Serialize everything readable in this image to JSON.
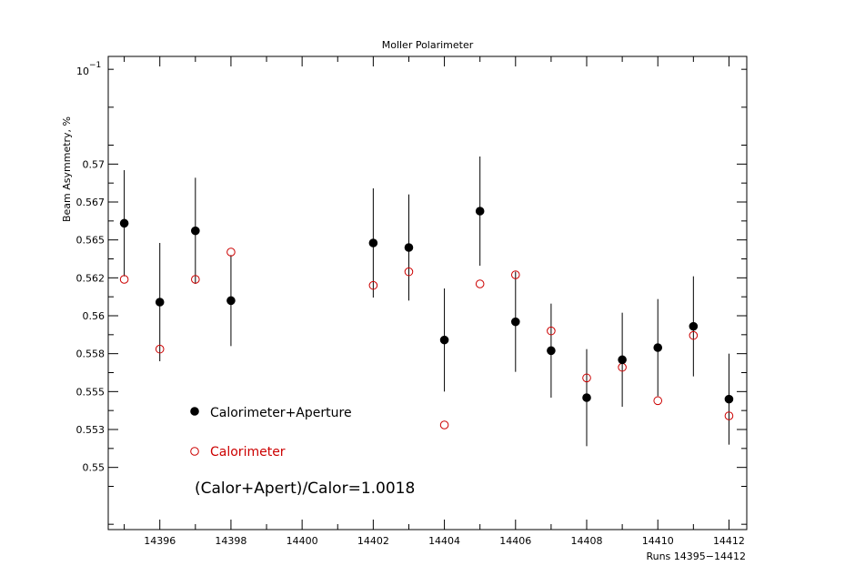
{
  "chart_data": {
    "type": "scatter",
    "title": "Moller Polarimeter",
    "xlabel": "Runs 14395−14412",
    "ylabel": "Beam Asymmetry, %",
    "y_exponent_label": "10",
    "y_exponent_power": "−1",
    "xlim": [
      14394.55,
      14412.5
    ],
    "ylim": [
      0.5459,
      0.5771
    ],
    "x_ticks": [
      14396,
      14398,
      14400,
      14402,
      14404,
      14406,
      14408,
      14410,
      14412
    ],
    "x_tick_labels": [
      "14396",
      "14398",
      "14400",
      "14402",
      "14404",
      "14406",
      "14408",
      "14410",
      "14412"
    ],
    "y_ticks": [
      0.55,
      0.5525,
      0.555,
      0.5575,
      0.56,
      0.5625,
      0.565,
      0.5675,
      0.57
    ],
    "y_tick_labels": [
      "0.55",
      "0.553",
      "0.555",
      "0.558",
      "0.56",
      "0.562",
      "0.565",
      "0.567",
      "0.57"
    ],
    "grid": false,
    "legend_placement": "lower-left",
    "series": [
      {
        "name": "Calorimeter+Aperture",
        "color": "#000000",
        "marker": "filled-circle",
        "x": [
          14395,
          14396,
          14397,
          14398,
          14402,
          14403,
          14404,
          14405,
          14406,
          14407,
          14408,
          14409,
          14410,
          14411,
          14412
        ],
        "y": [
          0.5661,
          0.5609,
          0.5656,
          0.561,
          0.5648,
          0.5645,
          0.5584,
          0.5669,
          0.5596,
          0.5577,
          0.5546,
          0.5571,
          0.5579,
          0.5593,
          0.5545
        ],
        "err": [
          0.0035,
          0.0039,
          0.0035,
          0.003,
          0.0036,
          0.0035,
          0.0034,
          0.0036,
          0.0033,
          0.0031,
          0.0032,
          0.0031,
          0.0032,
          0.0033,
          0.003
        ]
      },
      {
        "name": "Calorimeter",
        "color": "#cc0000",
        "marker": "open-circle",
        "x": [
          14395,
          14396,
          14397,
          14398,
          14402,
          14403,
          14404,
          14405,
          14406,
          14407,
          14408,
          14409,
          14410,
          14411,
          14412
        ],
        "y": [
          0.5624,
          0.5578,
          0.5624,
          0.5642,
          0.562,
          0.5629,
          0.5528,
          0.5621,
          0.5627,
          0.559,
          0.5559,
          0.5566,
          0.5544,
          0.5587,
          0.5534
        ]
      }
    ],
    "annotation": "(Calor+Apert)/Calor=1.0018"
  }
}
